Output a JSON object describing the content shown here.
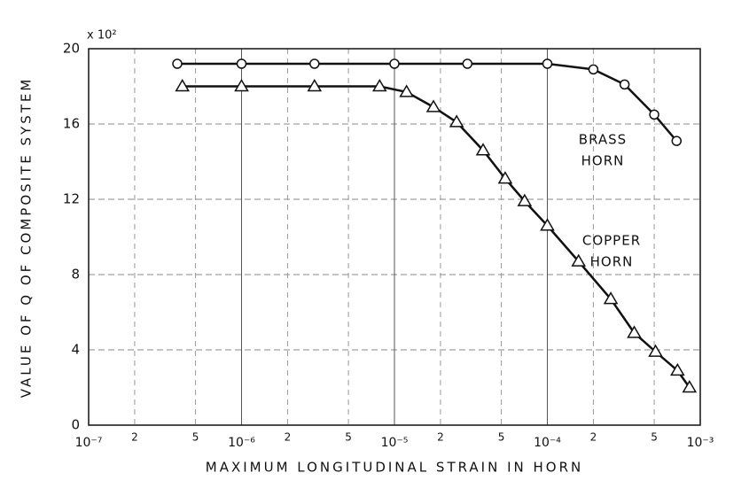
{
  "chart_data": {
    "type": "line",
    "x_label": "MAXIMUM LONGITUDINAL STRAIN IN HORN",
    "y_label": "VALUE OF Q OF COMPOSITE SYSTEM",
    "y_multiplier": "x 10²",
    "log_x": true,
    "grid": true,
    "xlim": [
      1e-07,
      0.001
    ],
    "ylim": [
      0,
      20
    ],
    "xticks": [
      {
        "value": 1e-07,
        "label": "10⁻⁷"
      },
      {
        "value": 2e-07,
        "label": "2"
      },
      {
        "value": 5e-07,
        "label": "5"
      },
      {
        "value": 1e-06,
        "label": "10⁻⁶"
      },
      {
        "value": 2e-06,
        "label": "2"
      },
      {
        "value": 5e-06,
        "label": "5"
      },
      {
        "value": 1e-05,
        "label": "10⁻⁵"
      },
      {
        "value": 2e-05,
        "label": "2"
      },
      {
        "value": 5e-05,
        "label": "5"
      },
      {
        "value": 0.0001,
        "label": "10⁻⁴"
      },
      {
        "value": 0.0002,
        "label": "2"
      },
      {
        "value": 0.0005,
        "label": "5"
      },
      {
        "value": 0.001,
        "label": "10⁻³"
      }
    ],
    "yticks": [
      0,
      4,
      8,
      12,
      16,
      20
    ],
    "series": [
      {
        "name": "BRASS HORN",
        "label_lines": [
          "BRASS",
          "HORN"
        ],
        "marker": "circle",
        "color": "#111111",
        "x": [
          3.8e-07,
          1e-06,
          3e-06,
          1e-05,
          3e-05,
          0.0001,
          0.0002,
          0.00032,
          0.0005,
          0.0007
        ],
        "values": [
          19.2,
          19.2,
          19.2,
          19.2,
          19.2,
          19.2,
          18.9,
          18.1,
          16.5,
          15.1
        ]
      },
      {
        "name": "COPPER HORN",
        "label_lines": [
          "COPPER",
          "HORN"
        ],
        "marker": "triangle",
        "color": "#111111",
        "x": [
          4.1e-07,
          1e-06,
          3e-06,
          8e-06,
          1.2e-05,
          1.8e-05,
          2.55e-05,
          3.8e-05,
          5.3e-05,
          7.1e-05,
          0.0001,
          0.00016,
          0.00026,
          0.00037,
          0.00051,
          0.00071,
          0.00085
        ],
        "values": [
          18.0,
          18.0,
          18.0,
          18.0,
          17.7,
          16.9,
          16.1,
          14.6,
          13.1,
          11.9,
          10.6,
          8.7,
          6.7,
          4.9,
          3.9,
          2.9,
          2.0
        ]
      }
    ]
  }
}
